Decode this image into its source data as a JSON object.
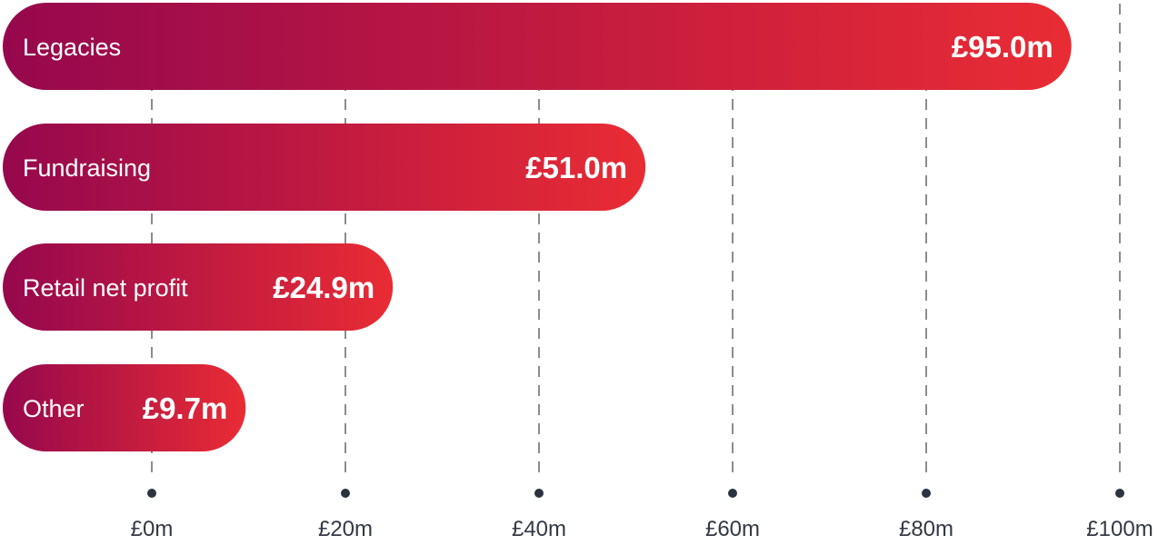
{
  "chart_data": {
    "type": "bar",
    "orientation": "horizontal",
    "categories": [
      "Legacies",
      "Fundraising",
      "Retail net profit",
      "Other"
    ],
    "values": [
      95.0,
      51.0,
      24.9,
      9.7
    ],
    "value_labels": [
      "£95.0m",
      "£51.0m",
      "£24.9m",
      "£9.7m"
    ],
    "xlim": [
      0,
      100
    ],
    "ticks": [
      0,
      20,
      40,
      60,
      80,
      100
    ],
    "tick_labels": [
      "£0m",
      "£20m",
      "£40m",
      "£60m",
      "£80m",
      "£100m"
    ],
    "grid": true,
    "title": "",
    "xlabel": "",
    "ylabel": "",
    "colors": {
      "gradient_start": "#96084d",
      "gradient_end": "#e92c34",
      "grid": "#8c8c8c",
      "tick_dot": "#2b3240",
      "tick_text": "#333844"
    }
  }
}
